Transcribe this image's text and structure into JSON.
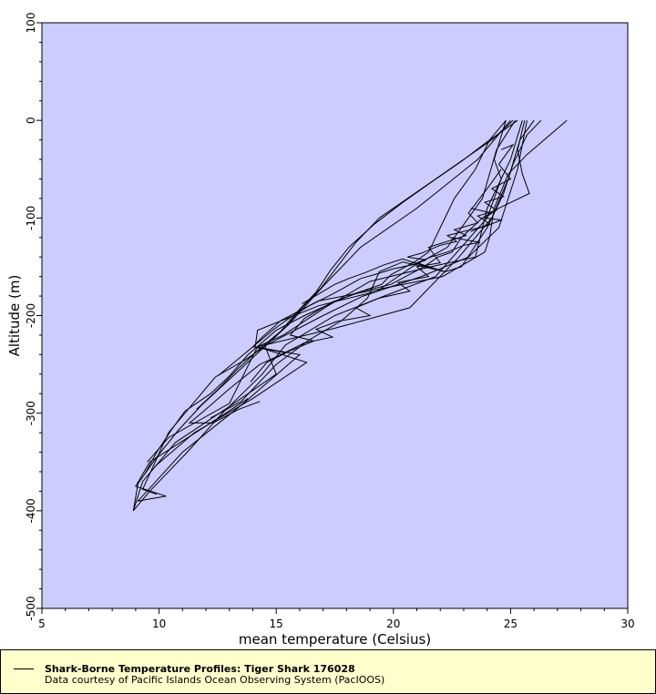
{
  "colors": {
    "plot_background": "#ccccff",
    "line": "#000000",
    "legend_background": "#ffffcc"
  },
  "legend": {
    "title": "Shark-Borne Temperature Profiles: Tiger Shark 176028",
    "credit": "Data courtesy of Pacific Islands Ocean Observing System (PacIOOS)"
  },
  "chart_data": {
    "type": "line",
    "xlabel": "mean temperature (Celsius)",
    "ylabel": "Altitude (m)",
    "xlim": [
      5,
      30
    ],
    "ylim": [
      -500,
      100
    ],
    "xticks": [
      5,
      10,
      15,
      20,
      25,
      30
    ],
    "yticks": [
      100,
      0,
      -100,
      -200,
      -300,
      -400,
      -500
    ],
    "grid": false,
    "legend_position": "bottom",
    "series": [
      {
        "values": [
          [
            24.8,
            0
          ],
          [
            24.3,
            -40
          ],
          [
            24.6,
            -60
          ],
          [
            24.0,
            -100
          ],
          [
            21.8,
            -160
          ],
          [
            19.6,
            -180
          ],
          [
            17.5,
            -200
          ],
          [
            15.4,
            -230
          ],
          [
            14.4,
            -260
          ],
          [
            12.7,
            -300
          ],
          [
            11.2,
            -340
          ],
          [
            9.6,
            -380
          ],
          [
            8.9,
            -400
          ]
        ]
      },
      {
        "values": [
          [
            25.0,
            0
          ],
          [
            23.6,
            -40
          ],
          [
            21.0,
            -90
          ],
          [
            18.6,
            -130
          ],
          [
            17.0,
            -170
          ],
          [
            15.5,
            -210
          ],
          [
            14.5,
            -230
          ],
          [
            15.0,
            -260
          ],
          [
            13.2,
            -290
          ],
          [
            10.7,
            -330
          ],
          [
            9.3,
            -370
          ],
          [
            8.9,
            -400
          ]
        ]
      },
      {
        "values": [
          [
            25.2,
            0
          ],
          [
            24.4,
            -30
          ],
          [
            23.8,
            -80
          ],
          [
            22.3,
            -130
          ],
          [
            20.8,
            -150
          ],
          [
            19.3,
            -175
          ],
          [
            16.8,
            -190
          ],
          [
            14.2,
            -215
          ],
          [
            14.1,
            -232
          ],
          [
            16.0,
            -240
          ],
          [
            13.6,
            -290
          ],
          [
            11.0,
            -340
          ],
          [
            9.1,
            -390
          ],
          [
            10.3,
            -385
          ],
          [
            9.0,
            -375
          ],
          [
            9.6,
            -350
          ],
          [
            12.2,
            -310
          ],
          [
            13.8,
            -285
          ]
        ]
      },
      {
        "values": [
          [
            25.5,
            0
          ],
          [
            25.0,
            -40
          ],
          [
            24.0,
            -90
          ],
          [
            23.5,
            -140
          ],
          [
            21.6,
            -150
          ],
          [
            19.0,
            -165
          ],
          [
            17.2,
            -190
          ],
          [
            15.3,
            -220
          ],
          [
            14.2,
            -232
          ],
          [
            16.3,
            -248
          ],
          [
            14.0,
            -285
          ],
          [
            11.5,
            -320
          ],
          [
            9.8,
            -355
          ]
        ]
      },
      {
        "values": [
          [
            25.7,
            0
          ],
          [
            25.3,
            -50
          ],
          [
            24.5,
            -110
          ],
          [
            23.2,
            -140
          ],
          [
            21.2,
            -160
          ],
          [
            18.7,
            -180
          ],
          [
            17.0,
            -200
          ],
          [
            14.6,
            -230
          ],
          [
            13.7,
            -245
          ],
          [
            12.4,
            -263
          ],
          [
            10.4,
            -320
          ],
          [
            9.3,
            -378
          ],
          [
            9.9,
            -383
          ]
        ]
      },
      {
        "values": [
          [
            26.0,
            0
          ],
          [
            25.4,
            -20
          ],
          [
            24.9,
            -60
          ],
          [
            24.2,
            -100
          ],
          [
            22.8,
            -140
          ],
          [
            20.7,
            -192
          ],
          [
            17.5,
            -213
          ],
          [
            14.2,
            -232
          ],
          [
            13.0,
            -290
          ],
          [
            10.4,
            -325
          ],
          [
            9.5,
            -350
          ]
        ]
      },
      {
        "values": [
          [
            27.4,
            0
          ],
          [
            25.7,
            -35
          ],
          [
            24.9,
            -55
          ],
          [
            24.3,
            -90
          ],
          [
            24.1,
            -120
          ],
          [
            23.9,
            -135
          ],
          [
            22.1,
            -160
          ],
          [
            20.0,
            -170
          ],
          [
            16.8,
            -185
          ],
          [
            15.2,
            -205
          ],
          [
            14.4,
            -222
          ],
          [
            14.0,
            -232
          ],
          [
            15.4,
            -238
          ],
          [
            14.3,
            -250
          ],
          [
            13.0,
            -275
          ],
          [
            11.8,
            -300
          ],
          [
            11.3,
            -310
          ],
          [
            12.3,
            -310
          ],
          [
            13.4,
            -296
          ],
          [
            14.3,
            -288
          ]
        ]
      },
      {
        "values": [
          [
            26.3,
            0
          ],
          [
            25.7,
            -15
          ],
          [
            25.1,
            -45
          ],
          [
            24.7,
            -75
          ],
          [
            24.0,
            -110
          ],
          [
            22.9,
            -150
          ],
          [
            22.2,
            -155
          ],
          [
            20.4,
            -145
          ],
          [
            19.4,
            -155
          ],
          [
            18.9,
            -182
          ],
          [
            17.8,
            -205
          ],
          [
            16.4,
            -225
          ],
          [
            15.0,
            -250
          ],
          [
            13.5,
            -288
          ],
          [
            12.2,
            -305
          ]
        ]
      },
      {
        "values": [
          [
            25.6,
            0
          ],
          [
            25.3,
            -30
          ],
          [
            25.5,
            -55
          ],
          [
            25.8,
            -75
          ],
          [
            24.5,
            -90
          ],
          [
            23.8,
            -100
          ],
          [
            22.9,
            -120
          ],
          [
            22.5,
            -135
          ],
          [
            21.9,
            -140
          ],
          [
            21.3,
            -150
          ],
          [
            19.9,
            -168
          ],
          [
            18.7,
            -175
          ],
          [
            17.4,
            -186
          ],
          [
            16.2,
            -203
          ],
          [
            15.6,
            -220
          ],
          [
            16.6,
            -226
          ],
          [
            15.6,
            -236
          ],
          [
            14.6,
            -248
          ],
          [
            13.9,
            -268
          ]
        ]
      },
      {
        "values": [
          [
            24.8,
            0
          ],
          [
            24.1,
            -20
          ],
          [
            23.5,
            -50
          ],
          [
            22.6,
            -80
          ],
          [
            22.0,
            -110
          ],
          [
            21.5,
            -135
          ],
          [
            20.9,
            -145
          ],
          [
            19.9,
            -158
          ],
          [
            19.5,
            -168
          ],
          [
            18.3,
            -178
          ],
          [
            17.3,
            -188
          ],
          [
            16.2,
            -200
          ],
          [
            15.0,
            -215
          ],
          [
            13.8,
            -240
          ],
          [
            13.0,
            -262
          ],
          [
            12.2,
            -280
          ],
          [
            11.1,
            -298
          ],
          [
            10.5,
            -318
          ],
          [
            9.9,
            -340
          ],
          [
            9.4,
            -362
          ]
        ]
      },
      {
        "values": [
          [
            25.1,
            0
          ],
          [
            24.2,
            -20
          ],
          [
            23.0,
            -40
          ],
          [
            21.8,
            -60
          ],
          [
            20.6,
            -80
          ],
          [
            19.4,
            -100
          ],
          [
            18.4,
            -125
          ],
          [
            17.6,
            -150
          ],
          [
            16.9,
            -172
          ],
          [
            16.1,
            -192
          ],
          [
            15.4,
            -212
          ],
          [
            14.5,
            -232
          ],
          [
            13.6,
            -252
          ],
          [
            12.7,
            -272
          ],
          [
            11.8,
            -292
          ],
          [
            10.8,
            -318
          ],
          [
            9.9,
            -345
          ],
          [
            9.1,
            -372
          ],
          [
            8.9,
            -400
          ]
        ]
      },
      {
        "values": [
          [
            25.3,
            0
          ],
          [
            24.0,
            -22
          ],
          [
            22.9,
            -42
          ],
          [
            21.7,
            -62
          ],
          [
            20.4,
            -84
          ],
          [
            19.2,
            -106
          ],
          [
            18.1,
            -130
          ],
          [
            17.3,
            -154
          ],
          [
            16.7,
            -176
          ],
          [
            15.9,
            -196
          ],
          [
            15.2,
            -216
          ],
          [
            14.2,
            -236
          ],
          [
            13.3,
            -256
          ],
          [
            12.5,
            -276
          ],
          [
            11.6,
            -296
          ]
        ]
      },
      {
        "values": [
          [
            24.6,
            -50
          ],
          [
            24.0,
            -70
          ],
          [
            23.2,
            -95
          ],
          [
            23.6,
            -105
          ],
          [
            22.6,
            -112
          ],
          [
            23.1,
            -118
          ],
          [
            21.5,
            -130
          ],
          [
            22.0,
            -146
          ],
          [
            21.0,
            -150
          ],
          [
            21.5,
            -160
          ],
          [
            20.2,
            -166
          ],
          [
            20.7,
            -175
          ],
          [
            19.4,
            -182
          ],
          [
            18.4,
            -192
          ],
          [
            19.0,
            -200
          ],
          [
            17.6,
            -206
          ],
          [
            16.7,
            -214
          ],
          [
            17.4,
            -222
          ],
          [
            16.2,
            -228
          ],
          [
            15.2,
            -240
          ]
        ]
      },
      {
        "values": [
          [
            23.3,
            -90
          ],
          [
            24.2,
            -95
          ],
          [
            23.9,
            -100
          ],
          [
            24.6,
            -102
          ],
          [
            24.0,
            -108
          ],
          [
            23.3,
            -112
          ],
          [
            22.3,
            -118
          ],
          [
            22.7,
            -124
          ],
          [
            22.0,
            -128
          ],
          [
            21.2,
            -136
          ],
          [
            20.6,
            -140
          ],
          [
            21.4,
            -143
          ],
          [
            20.8,
            -148
          ],
          [
            20.0,
            -152
          ],
          [
            19.2,
            -158
          ],
          [
            18.6,
            -162
          ],
          [
            18.0,
            -170
          ],
          [
            17.4,
            -178
          ],
          [
            16.4,
            -190
          ],
          [
            15.6,
            -202
          ],
          [
            14.9,
            -214
          ],
          [
            14.3,
            -226
          ],
          [
            13.7,
            -238
          ],
          [
            13.1,
            -250
          ],
          [
            12.5,
            -262
          ]
        ]
      },
      {
        "values": [
          [
            22.5,
            -120
          ],
          [
            23.7,
            -125
          ],
          [
            23.0,
            -128
          ],
          [
            22.3,
            -135
          ],
          [
            21.6,
            -140
          ],
          [
            21.0,
            -146
          ],
          [
            22.2,
            -155
          ],
          [
            21.4,
            -150
          ],
          [
            20.4,
            -142
          ],
          [
            19.6,
            -148
          ],
          [
            18.8,
            -156
          ],
          [
            18.1,
            -162
          ],
          [
            17.5,
            -168
          ],
          [
            16.8,
            -178
          ],
          [
            16.1,
            -188
          ]
        ]
      },
      {
        "values": [
          [
            24.6,
            -30
          ],
          [
            25.1,
            -25
          ],
          [
            24.5,
            -45
          ],
          [
            25.0,
            -60
          ],
          [
            24.2,
            -70
          ],
          [
            24.7,
            -78
          ],
          [
            23.9,
            -84
          ],
          [
            24.4,
            -92
          ],
          [
            23.6,
            -98
          ],
          [
            24.1,
            -106
          ],
          [
            23.3,
            -114
          ]
        ]
      }
    ]
  }
}
